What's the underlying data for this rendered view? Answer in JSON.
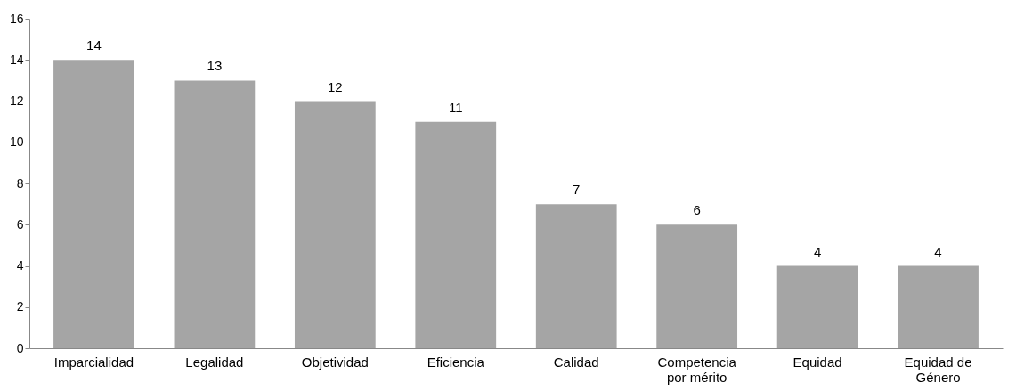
{
  "chart_data": {
    "type": "bar",
    "categories": [
      "Imparcialidad",
      "Legalidad",
      "Objetividad",
      "Eficiencia",
      "Calidad",
      "Competencia por mérito",
      "Equidad",
      "Equidad de Género"
    ],
    "values": [
      14,
      13,
      12,
      11,
      7,
      6,
      4,
      4
    ],
    "color": "#a5a5a5",
    "ylim": [
      0,
      16
    ],
    "yticks": [
      0,
      2,
      4,
      6,
      8,
      10,
      12,
      14,
      16
    ],
    "grid": false,
    "data_labels": true
  }
}
